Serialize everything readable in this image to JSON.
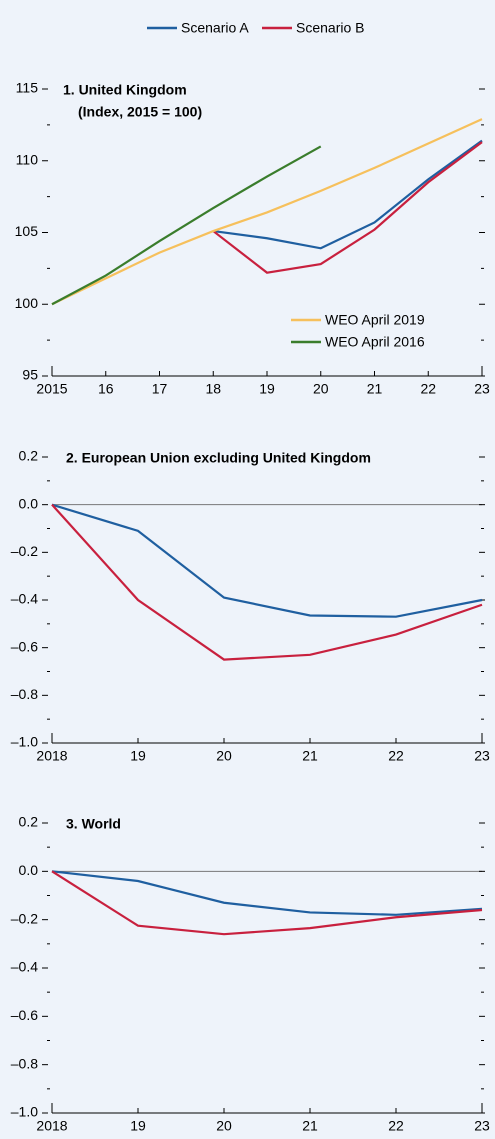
{
  "chart_data": [
    {
      "type": "line",
      "title": "1. United Kingdom",
      "subtitle": "(Index, 2015 = 100)",
      "categories": [
        "2015",
        "16",
        "17",
        "18",
        "19",
        "20",
        "21",
        "22",
        "23"
      ],
      "series": [
        {
          "name": "Scenario A",
          "color": "#1f5fa0",
          "values": [
            null,
            null,
            null,
            105.1,
            104.6,
            103.9,
            105.7,
            108.7,
            111.4
          ]
        },
        {
          "name": "Scenario B",
          "color": "#c8203e",
          "values": [
            null,
            null,
            null,
            105.1,
            102.2,
            102.8,
            105.2,
            108.5,
            111.3
          ]
        },
        {
          "name": "WEO April 2019",
          "color": "#f6c05c",
          "values": [
            100,
            101.8,
            103.6,
            105.1,
            106.4,
            107.9,
            109.5,
            111.2,
            112.9
          ]
        },
        {
          "name": "WEO April 2016",
          "color": "#3a7d2c",
          "values": [
            100,
            102,
            104.4,
            106.7,
            108.9,
            111.0,
            null,
            null,
            null
          ]
        }
      ],
      "ylim": [
        95,
        115
      ],
      "yticks": [
        95,
        100,
        105,
        110,
        115
      ],
      "minor_yticks": [
        97.5,
        102.5,
        107.5,
        112.5
      ],
      "legend": "lower right"
    },
    {
      "type": "line",
      "title": "2. European Union excluding United Kingdom",
      "categories": [
        "2018",
        "19",
        "20",
        "21",
        "22",
        "23"
      ],
      "series": [
        {
          "color": "#1f5fa0",
          "values": [
            0,
            -0.11,
            -0.39,
            -0.465,
            -0.47,
            -0.4
          ]
        },
        {
          "color": "#c8203e",
          "values": [
            0,
            -0.4,
            -0.65,
            -0.63,
            -0.545,
            -0.42
          ]
        }
      ],
      "ylim": [
        -1.0,
        0.2
      ],
      "yticks": [
        {
          "value": -1.0,
          "label": "–1.0"
        },
        {
          "value": -0.8,
          "label": "–0.8"
        },
        {
          "value": -0.6,
          "label": "–0.6"
        },
        {
          "value": -0.4,
          "label": "–0.4"
        },
        {
          "value": -0.2,
          "label": "–0.2"
        },
        {
          "value": 0,
          "label": "0.0"
        },
        0.2
      ],
      "minor_yticks": [
        -0.9,
        -0.7,
        -0.5,
        -0.3,
        -0.1,
        0.1
      ]
    },
    {
      "type": "line",
      "title": "3. World",
      "categories": [
        "2018",
        "19",
        "20",
        "21",
        "22",
        "23"
      ],
      "series": [
        {
          "color": "#1f5fa0",
          "values": [
            0,
            -0.04,
            -0.13,
            -0.17,
            -0.18,
            -0.155
          ]
        },
        {
          "color": "#c8203e",
          "values": [
            0,
            -0.225,
            -0.26,
            -0.235,
            -0.19,
            -0.16
          ]
        }
      ],
      "ylim": [
        -1.0,
        0.2
      ],
      "yticks": [
        {
          "value": -1.0,
          "label": "–1.0"
        },
        {
          "value": -0.8,
          "label": "–0.8"
        },
        {
          "value": -0.6,
          "label": "–0.6"
        },
        {
          "value": -0.4,
          "label": "–0.4"
        },
        {
          "value": -0.2,
          "label": "–0.2"
        },
        {
          "value": 0,
          "label": "0.0"
        },
        0.2
      ],
      "minor_yticks": [
        -0.9,
        -0.7,
        -0.5,
        -0.3,
        -0.1,
        0.1
      ]
    }
  ]
}
